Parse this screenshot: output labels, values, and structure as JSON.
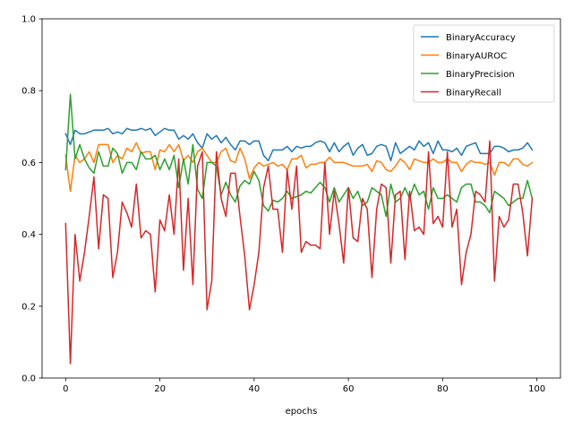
{
  "chart_data": {
    "type": "line",
    "title": "",
    "xlabel": "epochs",
    "ylabel": "",
    "xlim": [
      -5,
      105
    ],
    "ylim": [
      0.0,
      1.0
    ],
    "xticks": [
      0,
      20,
      40,
      60,
      80,
      100
    ],
    "yticks": [
      0.0,
      0.2,
      0.4,
      0.6,
      0.8,
      1.0
    ],
    "xtick_labels": [
      "0",
      "20",
      "40",
      "60",
      "80",
      "100"
    ],
    "ytick_labels": [
      "0.0",
      "0.2",
      "0.4",
      "0.6",
      "0.8",
      "1.0"
    ],
    "grid": false,
    "legend_position": "top-right",
    "x": [
      0,
      1,
      2,
      3,
      4,
      5,
      6,
      7,
      8,
      9,
      10,
      11,
      12,
      13,
      14,
      15,
      16,
      17,
      18,
      19,
      20,
      21,
      22,
      23,
      24,
      25,
      26,
      27,
      28,
      29,
      30,
      31,
      32,
      33,
      34,
      35,
      36,
      37,
      38,
      39,
      40,
      41,
      42,
      43,
      44,
      45,
      46,
      47,
      48,
      49,
      50,
      51,
      52,
      53,
      54,
      55,
      56,
      57,
      58,
      59,
      60,
      61,
      62,
      63,
      64,
      65,
      66,
      67,
      68,
      69,
      70,
      71,
      72,
      73,
      74,
      75,
      76,
      77,
      78,
      79,
      80,
      81,
      82,
      83,
      84,
      85,
      86,
      87,
      88,
      89,
      90,
      91,
      92,
      93,
      94,
      95,
      96,
      97,
      98,
      99
    ],
    "series": [
      {
        "name": "BinaryAccuracy",
        "color": "#1f77b4",
        "values": [
          0.68,
          0.65,
          0.69,
          0.68,
          0.68,
          0.685,
          0.69,
          0.69,
          0.69,
          0.695,
          0.68,
          0.685,
          0.68,
          0.695,
          0.69,
          0.69,
          0.695,
          0.69,
          0.695,
          0.675,
          0.685,
          0.695,
          0.69,
          0.69,
          0.665,
          0.675,
          0.665,
          0.68,
          0.655,
          0.64,
          0.68,
          0.665,
          0.675,
          0.655,
          0.67,
          0.65,
          0.635,
          0.66,
          0.66,
          0.65,
          0.66,
          0.66,
          0.62,
          0.605,
          0.635,
          0.635,
          0.635,
          0.645,
          0.63,
          0.645,
          0.64,
          0.645,
          0.645,
          0.655,
          0.66,
          0.655,
          0.63,
          0.655,
          0.63,
          0.645,
          0.655,
          0.62,
          0.64,
          0.65,
          0.62,
          0.625,
          0.645,
          0.65,
          0.645,
          0.605,
          0.655,
          0.625,
          0.635,
          0.645,
          0.635,
          0.66,
          0.645,
          0.655,
          0.625,
          0.66,
          0.635,
          0.635,
          0.63,
          0.64,
          0.62,
          0.645,
          0.65,
          0.655,
          0.625,
          0.625,
          0.625,
          0.645,
          0.645,
          0.64,
          0.63,
          0.635,
          0.635,
          0.64,
          0.655,
          0.635
        ]
      },
      {
        "name": "BinaryAUROC",
        "color": "#ff7f0e",
        "values": [
          0.62,
          0.52,
          0.62,
          0.6,
          0.61,
          0.63,
          0.6,
          0.65,
          0.65,
          0.65,
          0.6,
          0.62,
          0.61,
          0.64,
          0.63,
          0.655,
          0.625,
          0.63,
          0.63,
          0.58,
          0.635,
          0.63,
          0.65,
          0.63,
          0.65,
          0.605,
          0.62,
          0.6,
          0.63,
          0.64,
          0.62,
          0.6,
          0.6,
          0.63,
          0.64,
          0.605,
          0.6,
          0.64,
          0.61,
          0.555,
          0.585,
          0.6,
          0.59,
          0.595,
          0.6,
          0.59,
          0.595,
          0.58,
          0.61,
          0.61,
          0.62,
          0.585,
          0.595,
          0.595,
          0.6,
          0.6,
          0.615,
          0.6,
          0.6,
          0.6,
          0.595,
          0.59,
          0.59,
          0.59,
          0.595,
          0.575,
          0.605,
          0.6,
          0.58,
          0.575,
          0.59,
          0.61,
          0.6,
          0.58,
          0.61,
          0.605,
          0.6,
          0.6,
          0.61,
          0.6,
          0.6,
          0.61,
          0.6,
          0.6,
          0.575,
          0.595,
          0.605,
          0.6,
          0.6,
          0.595,
          0.6,
          0.565,
          0.6,
          0.6,
          0.59,
          0.61,
          0.61,
          0.595,
          0.59,
          0.6
        ]
      },
      {
        "name": "BinaryPrecision",
        "color": "#2ca02c",
        "values": [
          0.58,
          0.79,
          0.61,
          0.65,
          0.61,
          0.585,
          0.57,
          0.63,
          0.59,
          0.59,
          0.64,
          0.625,
          0.57,
          0.6,
          0.6,
          0.58,
          0.63,
          0.61,
          0.61,
          0.62,
          0.58,
          0.61,
          0.58,
          0.62,
          0.53,
          0.61,
          0.54,
          0.65,
          0.525,
          0.5,
          0.6,
          0.6,
          0.59,
          0.51,
          0.545,
          0.51,
          0.49,
          0.535,
          0.55,
          0.54,
          0.575,
          0.55,
          0.48,
          0.465,
          0.495,
          0.49,
          0.5,
          0.52,
          0.5,
          0.505,
          0.51,
          0.52,
          0.515,
          0.53,
          0.545,
          0.53,
          0.49,
          0.53,
          0.49,
          0.51,
          0.53,
          0.5,
          0.52,
          0.48,
          0.49,
          0.53,
          0.52,
          0.51,
          0.45,
          0.54,
          0.49,
          0.5,
          0.53,
          0.5,
          0.54,
          0.51,
          0.52,
          0.47,
          0.53,
          0.5,
          0.5,
          0.51,
          0.5,
          0.49,
          0.53,
          0.54,
          0.54,
          0.49,
          0.49,
          0.48,
          0.46,
          0.52,
          0.51,
          0.5,
          0.48,
          0.49,
          0.5,
          0.5,
          0.55,
          0.5
        ]
      },
      {
        "name": "BinaryRecall",
        "color": "#d62728",
        "values": [
          0.43,
          0.04,
          0.4,
          0.27,
          0.35,
          0.45,
          0.56,
          0.36,
          0.51,
          0.5,
          0.28,
          0.35,
          0.49,
          0.46,
          0.42,
          0.54,
          0.39,
          0.41,
          0.4,
          0.24,
          0.44,
          0.41,
          0.51,
          0.4,
          0.61,
          0.3,
          0.5,
          0.26,
          0.59,
          0.63,
          0.19,
          0.27,
          0.63,
          0.5,
          0.45,
          0.57,
          0.57,
          0.45,
          0.34,
          0.19,
          0.26,
          0.35,
          0.53,
          0.59,
          0.47,
          0.47,
          0.35,
          0.58,
          0.47,
          0.59,
          0.35,
          0.38,
          0.37,
          0.37,
          0.36,
          0.6,
          0.4,
          0.52,
          0.43,
          0.32,
          0.53,
          0.39,
          0.38,
          0.5,
          0.47,
          0.28,
          0.47,
          0.54,
          0.53,
          0.32,
          0.51,
          0.52,
          0.33,
          0.52,
          0.41,
          0.42,
          0.4,
          0.63,
          0.43,
          0.45,
          0.42,
          0.63,
          0.42,
          0.47,
          0.26,
          0.35,
          0.4,
          0.52,
          0.51,
          0.49,
          0.66,
          0.27,
          0.45,
          0.42,
          0.44,
          0.54,
          0.54,
          0.46,
          0.34,
          0.5
        ]
      }
    ]
  }
}
